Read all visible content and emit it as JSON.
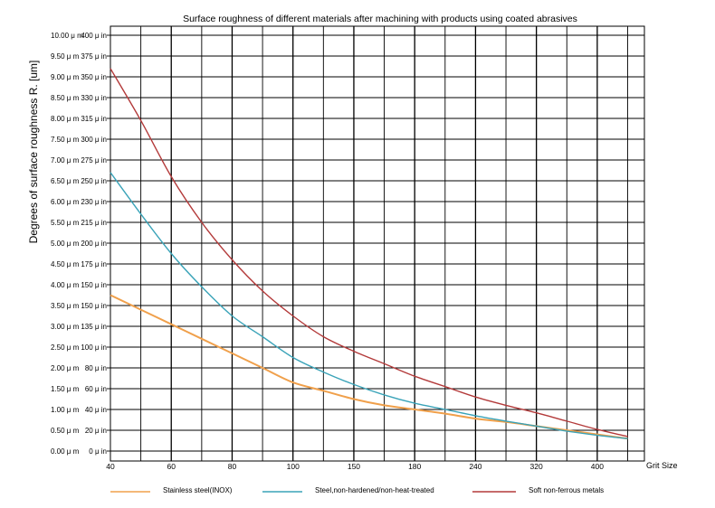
{
  "colors": {
    "background": "#ffffff",
    "grid": "#000000",
    "series": [
      "#f0a04b",
      "#3aa3b8",
      "#b33a3a"
    ]
  },
  "chart_data": {
    "type": "line",
    "title": "Surface roughness of different materials after machining with products using coated abrasives",
    "xlabel": "Grit Size",
    "ylabel": "Degrees of surface roughness R. [um]",
    "x_tick_labels": [
      "40",
      "60",
      "80",
      "100",
      "150",
      "180",
      "240",
      "320",
      "400"
    ],
    "x_categories": [
      "40",
      "",
      "60",
      "",
      "80",
      "",
      "100",
      "",
      "150",
      "",
      "180",
      "",
      "240",
      "",
      "320",
      "",
      "400",
      ""
    ],
    "y_tick_labels_um": [
      "0.00 μ m",
      "0.50 μ m",
      "1.00 μ m",
      "1.50 μ m",
      "2.00 μ m",
      "2.50 μ m",
      "3.00 μ m",
      "3.50 μ m",
      "4.00 μ m",
      "4.50 μ m",
      "5.00 μ m",
      "5.50 μ m",
      "6.00 μ m",
      "6.50 μ m",
      "7.00 μ m",
      "7.50 μ m",
      "8.00 μ m",
      "8.50 μ m",
      "9.00 μ m",
      "9.50 μ m",
      "10.00 μ m"
    ],
    "y_tick_labels_uin": [
      "0 μ in",
      "20 μ in",
      "40 μ in",
      "60 μ in",
      "80 μ in",
      "100 μ in",
      "135 μ in",
      "150 μ in",
      "150 μ in",
      "175 μ in",
      "200 μ in",
      "215 μ in",
      "230 μ in",
      "250 μ in",
      "275 μ in",
      "300 μ in",
      "315 μ in",
      "330 μ in",
      "350 μ in",
      "375 μ in",
      "400 μ in"
    ],
    "ylim": [
      0,
      10
    ],
    "grid": true,
    "legend_position": "bottom",
    "series": [
      {
        "name": "Stainless steel(INOX)",
        "x": [
          0,
          1,
          2,
          3,
          4,
          5,
          6,
          7,
          8,
          9,
          10,
          11,
          12,
          13,
          14,
          15,
          16,
          17
        ],
        "values": [
          3.75,
          3.4,
          3.05,
          2.7,
          2.35,
          2.0,
          1.65,
          1.45,
          1.25,
          1.1,
          1.0,
          0.9,
          0.78,
          0.7,
          0.6,
          0.5,
          0.4,
          0.3
        ]
      },
      {
        "name": "Steel,non-hardened/non-heat-treated",
        "x": [
          0,
          1,
          2,
          3,
          4,
          5,
          6,
          7,
          8,
          9,
          10,
          11,
          12,
          13,
          14,
          15,
          16,
          17
        ],
        "values": [
          6.7,
          5.7,
          4.75,
          3.95,
          3.25,
          2.75,
          2.25,
          1.9,
          1.6,
          1.35,
          1.15,
          1.0,
          0.85,
          0.72,
          0.6,
          0.48,
          0.38,
          0.3
        ]
      },
      {
        "name": "Soft non-ferrous metals",
        "x": [
          0,
          1,
          2,
          3,
          4,
          5,
          6,
          7,
          8,
          9,
          10,
          11,
          12,
          13,
          14,
          15,
          16,
          17
        ],
        "values": [
          9.2,
          7.95,
          6.6,
          5.5,
          4.6,
          3.85,
          3.25,
          2.75,
          2.4,
          2.1,
          1.8,
          1.55,
          1.3,
          1.1,
          0.92,
          0.72,
          0.52,
          0.35
        ]
      }
    ]
  }
}
